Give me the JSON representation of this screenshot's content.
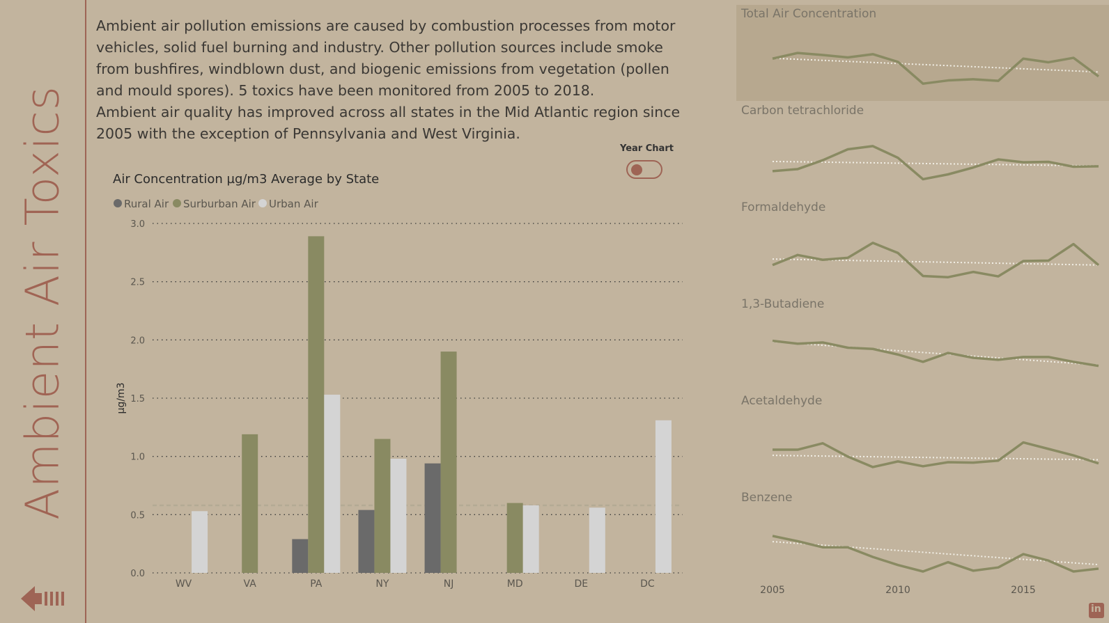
{
  "page": {
    "vertical_title": "Ambient Air Toxics",
    "intro_paragraph_1": "Ambient air pollution emissions are caused by combustion processes from motor vehicles, solid fuel burning and industry. Other pollution sources include smoke from bushfires, windblown dust, and biogenic emissions from vegetation (pollen and mould spores). 5 toxics have been monitored from 2005 to 2018.",
    "intro_paragraph_2": "Ambient air quality has improved across all states in the Mid Atlantic region since 2005 with the exception of Pennsylvania and West Virginia.",
    "toggle_label": "Year Chart",
    "toggle_on": false,
    "linkedin_label": "in"
  },
  "colors": {
    "background": "#c2b49e",
    "accent": "#9e6455",
    "rural": "#6a6a6a",
    "suburban": "#898a62",
    "urban": "#d4d4d4",
    "grid": "#3a3a3a",
    "average_line": "#b4aa94",
    "trend_line": "#f2efe6",
    "highlight_panel": "#b7a88f"
  },
  "chart_data": [
    {
      "type": "bar",
      "title": "Air Concentration µg/m3 Average by State",
      "xlabel": "",
      "ylabel": "µg/m3",
      "categories": [
        "WV",
        "VA",
        "PA",
        "NY",
        "NJ",
        "MD",
        "DE",
        "DC"
      ],
      "series": [
        {
          "name": "Rural Air",
          "values": [
            null,
            null,
            0.29,
            0.54,
            0.94,
            null,
            null,
            null
          ]
        },
        {
          "name": "Surburban Air",
          "values": [
            null,
            1.19,
            2.89,
            1.15,
            1.9,
            0.6,
            null,
            null
          ]
        },
        {
          "name": "Urban Air",
          "values": [
            0.53,
            null,
            1.53,
            0.98,
            null,
            0.58,
            0.56,
            1.31
          ]
        }
      ],
      "yticks": [
        "0.0",
        "0.5",
        "1.0",
        "1.5",
        "2.0",
        "2.5",
        "3.0"
      ],
      "ylim": [
        0,
        3
      ],
      "average_line": 0.58,
      "grid": true,
      "legend_position": "top-left"
    },
    {
      "type": "line",
      "title": "Total Air Concentration",
      "x": [
        2005,
        2006,
        2007,
        2008,
        2009,
        2010,
        2011,
        2012,
        2013,
        2014,
        2015,
        2016,
        2017,
        2018
      ],
      "values": [
        0.72,
        0.86,
        0.81,
        0.75,
        0.83,
        0.64,
        0.1,
        0.18,
        0.21,
        0.17,
        0.72,
        0.63,
        0.74,
        0.28
      ],
      "trend": [
        0.73,
        0.39
      ],
      "highlighted": true
    },
    {
      "type": "line",
      "title": "Carbon tetrachloride",
      "x": [
        2005,
        2006,
        2007,
        2008,
        2009,
        2010,
        2011,
        2012,
        2013,
        2014,
        2015,
        2016,
        2017,
        2018
      ],
      "values": [
        0.33,
        0.38,
        0.6,
        0.87,
        0.95,
        0.66,
        0.13,
        0.25,
        0.42,
        0.62,
        0.55,
        0.56,
        0.44,
        0.45
      ],
      "trend": [
        0.57,
        0.46
      ]
    },
    {
      "type": "line",
      "title": "Formaldehyde",
      "x": [
        2005,
        2006,
        2007,
        2008,
        2009,
        2010,
        2011,
        2012,
        2013,
        2014,
        2015,
        2016,
        2017,
        2018
      ],
      "values": [
        0.4,
        0.65,
        0.53,
        0.58,
        0.95,
        0.7,
        0.13,
        0.1,
        0.23,
        0.12,
        0.5,
        0.51,
        0.92,
        0.4
      ],
      "trend": [
        0.55,
        0.4
      ]
    },
    {
      "type": "line",
      "title": "1,3-Butadiene",
      "x": [
        2005,
        2006,
        2007,
        2008,
        2009,
        2010,
        2011,
        2012,
        2013,
        2014,
        2015,
        2016,
        2017,
        2018
      ],
      "values": [
        0.92,
        0.85,
        0.88,
        0.75,
        0.72,
        0.58,
        0.4,
        0.62,
        0.5,
        0.45,
        0.52,
        0.52,
        0.4,
        0.3
      ],
      "trend": [
        0.9,
        0.32
      ]
    },
    {
      "type": "line",
      "title": "Acetaldehyde",
      "x": [
        2005,
        2006,
        2007,
        2008,
        2009,
        2010,
        2011,
        2012,
        2013,
        2014,
        2015,
        2016,
        2017,
        2018
      ],
      "values": [
        0.62,
        0.62,
        0.78,
        0.45,
        0.19,
        0.33,
        0.21,
        0.31,
        0.3,
        0.35,
        0.8,
        0.64,
        0.48,
        0.28
      ],
      "trend": [
        0.48,
        0.37
      ]
    },
    {
      "type": "line",
      "title": "Benzene",
      "x": [
        2005,
        2006,
        2007,
        2008,
        2009,
        2010,
        2011,
        2012,
        2013,
        2014,
        2015,
        2016,
        2017,
        2018
      ],
      "values": [
        0.88,
        0.75,
        0.6,
        0.6,
        0.36,
        0.16,
        0.0,
        0.23,
        0.02,
        0.1,
        0.43,
        0.27,
        0.0,
        0.07
      ],
      "trend": [
        0.74,
        0.17
      ],
      "xticks": [
        "2005",
        "2010",
        "2015"
      ]
    }
  ]
}
